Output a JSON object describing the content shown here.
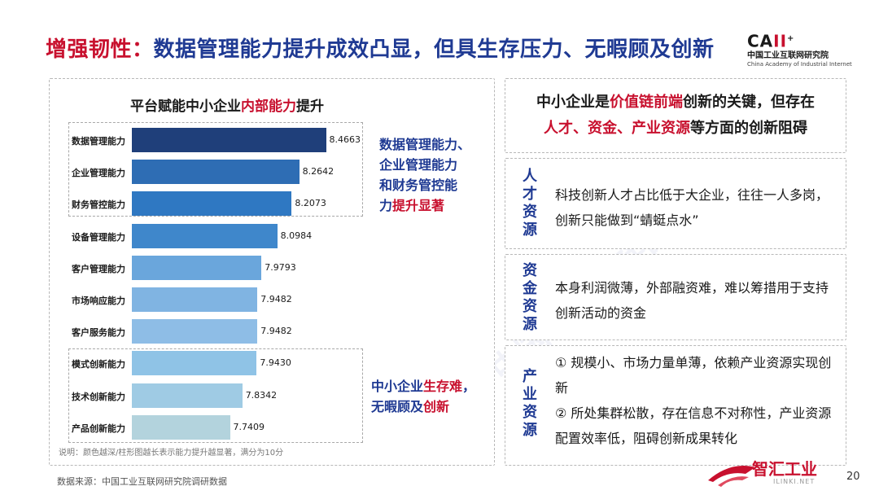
{
  "title": {
    "highlight": "增强韧性：",
    "rest": "数据管理能力提升成效凸显，但具生存压力、无暇顾及创新"
  },
  "logo": {
    "main_prefix": "CA",
    "main_suffix": "II",
    "sup": "+",
    "cn": "中国工业互联网研究院",
    "en": "China Academy of Industrial Internet"
  },
  "chart_data": {
    "type": "bar",
    "orientation": "horizontal",
    "title_prefix": "平台赋能中小企业",
    "title_highlight": "内部能力",
    "title_suffix": "提升",
    "categories": [
      "数据管理能力",
      "企业管理能力",
      "财务管控能力",
      "设备管理能力",
      "客户管理能力",
      "市场响应能力",
      "客户服务能力",
      "模式创新能力",
      "技术创新能力",
      "产品创新能力"
    ],
    "values": [
      8.4663,
      8.2642,
      8.2073,
      8.0984,
      7.9793,
      7.9482,
      7.9482,
      7.943,
      7.8342,
      7.7409
    ],
    "value_labels": [
      "8.4663",
      "8.2642",
      "8.2073",
      "8.0984",
      "7.9793",
      "7.9482",
      "7.9482",
      "7.9430",
      "7.8342",
      "7.7409"
    ],
    "colors": [
      "#1f3f7a",
      "#2e6db4",
      "#2f78c2",
      "#3f87cb",
      "#6aa6dc",
      "#80b4e2",
      "#8ebde6",
      "#8fc3e6",
      "#9fcbe4",
      "#b3d3dd"
    ],
    "xlim": [
      7.0,
      8.5
    ],
    "note": "说明：颜色越深/柱形图越长表示能力提升越显著，满分为10分"
  },
  "callouts": {
    "upper": {
      "lines": [
        "数据管理能力、",
        "企业管理能力",
        "和财务管控能"
      ],
      "last_prefix": "力",
      "last_highlight": "提升显著"
    },
    "lower": {
      "l1_prefix": "中小企业",
      "l1_highlight": "生存难",
      "l1_suffix": "，",
      "l2_prefix": "无暇顾及",
      "l2_highlight": "创新"
    }
  },
  "right_top": {
    "p1": "中小企业是",
    "h1": "价值链前端",
    "p2": "创新的关键，但存在",
    "h2": "人才、资金、产业资源",
    "p3": "等方面的创新阻碍"
  },
  "cards": [
    {
      "label": [
        "人",
        "才",
        "资",
        "源"
      ],
      "text": "科技创新人才占比低于大企业，往往一人多岗，创新只能做到“蜻蜓点水”"
    },
    {
      "label": [
        "资",
        "金",
        "资",
        "源"
      ],
      "text": "本身利润微薄，外部融资难，难以筹措用于支持创新活动的资金"
    },
    {
      "label": [
        "产",
        "业",
        "资",
        "源"
      ],
      "text_lines": [
        "① 规模小、市场力量单薄，依赖产业资源实现创新",
        "② 所处集群松散，存在信息不对称性，产业资源配置效率低，阻碍创新成果转化"
      ]
    }
  ],
  "source": "数据来源：中国工业互联网研究院调研数据",
  "page_number": "20",
  "watermark": {
    "brand": "智汇工业",
    "site": "ILINKI.NET",
    "diagonal": "中国工业互联网研究院"
  }
}
